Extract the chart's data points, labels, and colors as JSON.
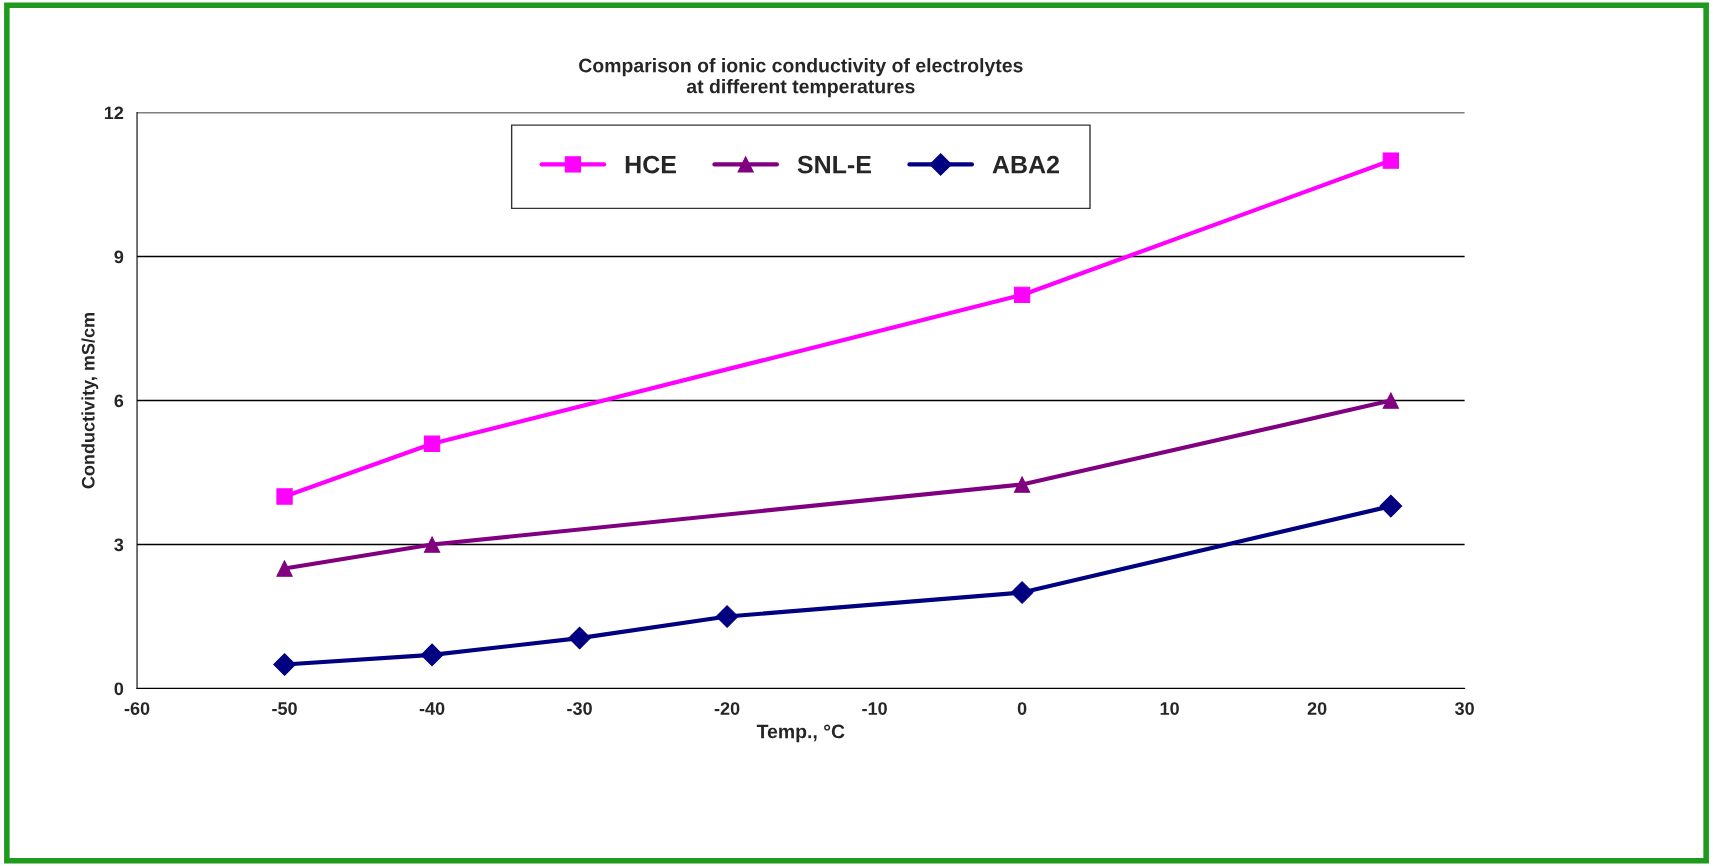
{
  "chart_data": {
    "type": "line",
    "title": "Comparison of ionic conductivity of electrolytes\nat different temperatures",
    "xlabel": "Temp., °C",
    "ylabel": "Conductivity, mS/cm",
    "series": [
      {
        "name": "HCE",
        "color": "#ff00ff",
        "marker": "square",
        "x": [
          -50,
          -40,
          0,
          25
        ],
        "values": [
          4.0,
          5.1,
          8.2,
          11.0
        ]
      },
      {
        "name": "SNL-E",
        "color": "#800080",
        "marker": "triangle",
        "x": [
          -50,
          -40,
          0,
          25
        ],
        "values": [
          2.5,
          3.0,
          4.25,
          6.0
        ]
      },
      {
        "name": "ABA2",
        "color": "#000080",
        "marker": "diamond",
        "x": [
          -50,
          -40,
          -30,
          -20,
          0,
          25
        ],
        "values": [
          0.5,
          0.7,
          1.05,
          1.5,
          2.0,
          3.8
        ]
      }
    ],
    "xlim": [
      -60,
      30
    ],
    "xticks": [
      -60,
      -50,
      -40,
      -30,
      -20,
      -10,
      0,
      10,
      20,
      30
    ],
    "ylim": [
      0,
      12
    ],
    "yticks": [
      0,
      3,
      6,
      9,
      12
    ],
    "grid": "y",
    "legend": "top",
    "line_style": "solid"
  }
}
